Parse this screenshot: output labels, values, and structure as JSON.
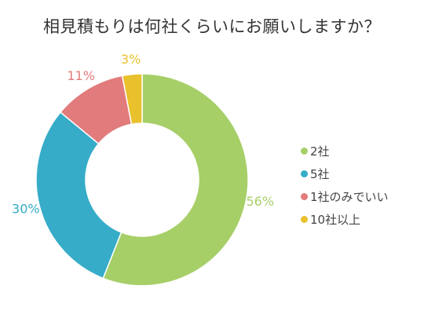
{
  "chart_data": {
    "type": "pie",
    "title": "相見積もりは何社くらいにお願いしますか？",
    "categories": [
      "2社",
      "5社",
      "1社のみでいい",
      "10社以上"
    ],
    "values": [
      56,
      30,
      11,
      3
    ],
    "value_labels": [
      "56%",
      "30%",
      "11%",
      "3%"
    ],
    "colors": [
      "#a6cf68",
      "#36acc8",
      "#e27b7b",
      "#e8c12d"
    ],
    "legend_position": "right",
    "donut": true
  }
}
